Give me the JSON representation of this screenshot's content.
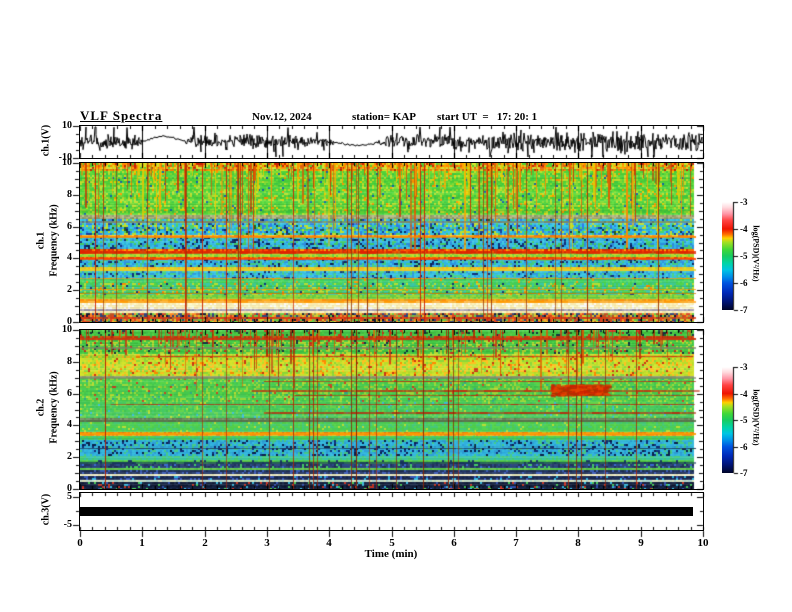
{
  "header": {
    "title": "VLF Spectra",
    "date": "Nov.12, 2024",
    "station": "station= KAP",
    "start_ut": "start UT  =   17: 20: 1"
  },
  "xaxis": {
    "label": "Time (min)",
    "ticks": [
      "0",
      "1",
      "2",
      "3",
      "4",
      "5",
      "6",
      "7",
      "8",
      "9",
      "10"
    ],
    "minutes_span": 10,
    "data_end_min": 9.84
  },
  "panels": {
    "ch1_wave": {
      "ylabel": "ch.1(V)",
      "yticks": [
        "10",
        "-10"
      ],
      "ytick_values": [
        10,
        -10
      ]
    },
    "spec1": {
      "ylabel_channel": "ch.1",
      "ylabel_axis": "Frequency (kHz)",
      "yticks": [
        "10",
        "8",
        "6",
        "4",
        "2",
        "0"
      ],
      "ytick_values": [
        10,
        8,
        6,
        4,
        2,
        0
      ]
    },
    "spec2": {
      "ylabel_channel": "ch.2",
      "ylabel_axis": "Frequency (kHz)",
      "yticks": [
        "10",
        "8",
        "6",
        "4",
        "2",
        "0"
      ],
      "ytick_values": [
        10,
        8,
        6,
        4,
        2,
        0
      ]
    },
    "ch3": {
      "ylabel": "ch.3(V)",
      "yticks": [
        "5",
        "-5"
      ],
      "ytick_values": [
        5,
        -5
      ]
    }
  },
  "colorbar": {
    "label": "log(PSD)(V²/Hz)",
    "ticks": [
      "-3",
      "-4",
      "-5",
      "-6",
      "-7"
    ],
    "gradient": [
      [
        "#ffffff",
        0
      ],
      [
        "#ffdade",
        5
      ],
      [
        "#ff96a6",
        11
      ],
      [
        "#ff4444",
        17
      ],
      [
        "#ee1400",
        25
      ],
      [
        "#ff7000",
        30
      ],
      [
        "#ffd000",
        33.5
      ],
      [
        "#a8e020",
        37
      ],
      [
        "#40d838",
        44
      ],
      [
        "#18cc60",
        50
      ],
      [
        "#00d4a8",
        57
      ],
      [
        "#00c4e4",
        63
      ],
      [
        "#0088e8",
        70
      ],
      [
        "#0054e0",
        75
      ],
      [
        "#0028b8",
        84
      ],
      [
        "#001478",
        92
      ],
      [
        "#000428",
        100
      ]
    ]
  },
  "colors": {
    "background": "#ffffff",
    "frame": "#000000",
    "trace": "#000000",
    "ch3_bar": "#000000"
  },
  "chart_data": [
    {
      "type": "line",
      "name": "ch1-voltage-waveform",
      "ylabel": "ch.1(V)",
      "xlabel": "Time (min)",
      "xlim": [
        0,
        10
      ],
      "ylim": [
        -10,
        10
      ],
      "description": "Dense broadband noise trace about 0 V with frequent spikes toward +/-9 V; quiet smooth arcs near 1.0-1.7 min and 4.1-4.8 min; strongest bursts near 7.0-7.5 min and after 8.8 min",
      "amplitude_envelope": [
        [
          0,
          5.5
        ],
        [
          0.9,
          5
        ],
        [
          1.0,
          1.5
        ],
        [
          1.7,
          1.5
        ],
        [
          1.8,
          5.5
        ],
        [
          2.6,
          6
        ],
        [
          3.4,
          5
        ],
        [
          4.05,
          2
        ],
        [
          4.85,
          2
        ],
        [
          5.0,
          5.5
        ],
        [
          6.3,
          5.5
        ],
        [
          7.0,
          8
        ],
        [
          7.5,
          6
        ],
        [
          8.3,
          6.5
        ],
        [
          8.8,
          7.5
        ],
        [
          9.4,
          6
        ],
        [
          9.84,
          7
        ]
      ],
      "smooth_arcs": [
        {
          "t": [
            1.0,
            1.7
          ],
          "peak_V": 3.5
        },
        {
          "t": [
            4.1,
            4.8
          ],
          "peak_V": -2
        }
      ]
    },
    {
      "type": "heatmap",
      "name": "ch1-spectrogram",
      "ylabel": "ch.1 Frequency (kHz)",
      "xlim": [
        0,
        10
      ],
      "ylim": [
        0,
        10
      ],
      "zlim": [
        -7,
        -3
      ],
      "zlabel": "log(PSD)(V²/Hz)",
      "t_end_min": 9.84,
      "description": "Green/yellow sferic-streaked region 6.7-10 kHz, cyan-blue bands 2.6-6.5 kHz with strong red interference band near 4.4 kHz, green 1.4-2.7 kHz, bright cream band 0.9-1.3 kHz, mixed stripes below 0.7 kHz",
      "bands": [
        {
          "f": [
            10,
            9.55
          ],
          "colors": [
            "#d8e42a",
            "#ffa500",
            "#55cc33",
            "#e06010",
            "#ccdd33",
            "#ff8800"
          ],
          "spk": [
            "#cc2200"
          ],
          "p": 0.1
        },
        {
          "f": [
            9.55,
            6.75
          ],
          "colors": [
            "#4fd43a",
            "#62de3d",
            "#bfe12f",
            "#4fd43a",
            "#86dd35",
            "#3fcc44"
          ],
          "spk": [
            "#ff9900",
            "#1166aa",
            "#e8d000"
          ],
          "p": 0.07
        },
        {
          "f": [
            6.75,
            6.5
          ],
          "colors": [
            "#9aa071",
            "#b0b080",
            "#8a9a68",
            "#b8c090"
          ]
        },
        {
          "f": [
            6.5,
            5.52
          ],
          "colors": [
            "#3dc8e8",
            "#2fb6e0",
            "#4ad46b",
            "#2f7fe8",
            "#bfe12f",
            "#35c0e8"
          ],
          "spk": [
            "#1a3fa0",
            "#0a2a66",
            "#206020"
          ],
          "p": 0.12
        },
        {
          "f": [
            5.52,
            5.36
          ],
          "colors": [
            "#ff9210",
            "#ffb020",
            "#e07010",
            "#ffcc30"
          ]
        },
        {
          "f": [
            5.36,
            4.6
          ],
          "colors": [
            "#38bce8",
            "#2f8fe0",
            "#45cc66",
            "#2fb6e0",
            "#40c8e0"
          ],
          "spk": [
            "#10307a",
            "#0a1f55"
          ],
          "p": 0.14
        },
        {
          "f": [
            4.6,
            4.32
          ],
          "colors": [
            "#e82800",
            "#ff4a00",
            "#d03000",
            "#ff7700"
          ],
          "spk": [
            "#ffaa00"
          ],
          "p": 0.15
        },
        {
          "f": [
            4.32,
            4.12
          ],
          "colors": [
            "#a8d832",
            "#c0e030",
            "#7ad23a"
          ]
        },
        {
          "f": [
            4.12,
            3.96
          ],
          "colors": [
            "#ff5f00",
            "#e83a00",
            "#ff8800"
          ]
        },
        {
          "f": [
            3.96,
            3.4
          ],
          "colors": [
            "#38c4e8",
            "#2f93e0",
            "#45cc80",
            "#2fb6e0"
          ],
          "spk": [
            "#10307a",
            "#0a1f55"
          ],
          "p": 0.14
        },
        {
          "f": [
            3.4,
            3.22
          ],
          "colors": [
            "#e8d820",
            "#ffb020",
            "#d8cc30"
          ]
        },
        {
          "f": [
            3.22,
            2.7
          ],
          "colors": [
            "#40c8e8",
            "#2f9fe0",
            "#4ad48a",
            "#38c0e0"
          ],
          "spk": [
            "#10307a"
          ],
          "p": 0.11
        },
        {
          "f": [
            2.7,
            2.4
          ],
          "colors": [
            "#44d455",
            "#55dd66",
            "#3fcc7a"
          ],
          "spk": [
            "#ff9900"
          ],
          "p": 0.03
        },
        {
          "f": [
            2.4,
            1.7
          ],
          "colors": [
            "#44cc58",
            "#38c8a8",
            "#52d44a",
            "#b8dd33",
            "#3fc890"
          ],
          "spk": [
            "#ff8800",
            "#10307a"
          ],
          "p": 0.06
        },
        {
          "f": [
            1.7,
            1.42
          ],
          "colors": [
            "#86d838",
            "#9ad83a",
            "#66cc44"
          ]
        },
        {
          "f": [
            1.42,
            1.26
          ],
          "colors": [
            "#ffb022",
            "#ff9010",
            "#e8a020"
          ]
        },
        {
          "f": [
            1.26,
            0.88
          ],
          "colors": [
            "#ffffd8",
            "#fff8c0",
            "#ffeeb0",
            "#ffffff",
            "#f8f0b8"
          ]
        },
        {
          "f": [
            0.88,
            0.68
          ],
          "colors": [
            "#b2a8c0",
            "#a8a0b0",
            "#c0b8c8",
            "#9a94a8"
          ]
        },
        {
          "f": [
            0.68,
            0.52
          ],
          "colors": [
            "#fff8c8",
            "#ffeeb8",
            "#f0e8a8"
          ]
        },
        {
          "f": [
            0.52,
            0
          ],
          "colors": [
            "#ff8822",
            "#9a9a48",
            "#dd4422",
            "#30447a",
            "#66cc44",
            "#d8c830",
            "#c05020"
          ],
          "spk": [
            "#101830"
          ],
          "p": 0.1
        }
      ],
      "h_lines": [
        {
          "f": 6.37,
          "c": "#7a8866",
          "w": 2
        },
        {
          "f": 5.44,
          "c": "#ff8800",
          "w": 2
        },
        {
          "f": 4.46,
          "c": "#e02200",
          "w": 3
        },
        {
          "f": 4.04,
          "c": "#ff4400",
          "w": 2
        },
        {
          "f": 3.31,
          "c": "#e8d020",
          "w": 2
        },
        {
          "f": 2.78,
          "c": "#ff9900",
          "w": 1
        },
        {
          "f": 2.06,
          "c": "#ff9900",
          "w": 1
        },
        {
          "f": 1.83,
          "c": "#cc7700",
          "w": 1
        },
        {
          "f": 1.32,
          "c": "#ff9900",
          "w": 2
        },
        {
          "f": 0.3,
          "c": "#dd3311",
          "w": 2
        }
      ],
      "streaks": {
        "count": 170,
        "zone_frac": 0.55,
        "len": [
          12,
          110
        ],
        "colors": [
          "#ff8800",
          "#ffaa00",
          "#e05500",
          "#e8cc00",
          "#cc3300"
        ],
        "full_count": 26,
        "full_colors": [
          "#cc2200",
          "#993300"
        ],
        "tail_color": "#3fcc66"
      }
    },
    {
      "type": "heatmap",
      "name": "ch2-spectrogram",
      "ylabel": "ch.2 Frequency (kHz)",
      "xlim": [
        0,
        10
      ],
      "ylim": [
        0,
        10
      ],
      "zlim": [
        -7,
        -3
      ],
      "zlabel": "log(PSD)(V²/Hz)",
      "t_end_min": 9.84,
      "description": "Mostly green with red sferic streaks above 5.5 kHz, bright yellow band 7.2-8.5 kHz, red interference blotch near 6.2 kHz at 7.6-8.4 min, cyan-blue 2.1-3 kHz, dark navy bands below 1.6 kHz with cream lines near 0.9 and 0.5 kHz",
      "bands": [
        {
          "f": [
            10,
            9.6
          ],
          "colors": [
            "#44cc44",
            "#3fc43f",
            "#55d44a",
            "#48c850"
          ],
          "spk": [
            "#113344",
            "#226622",
            "#cc3322"
          ],
          "p": 0.16
        },
        {
          "f": [
            9.6,
            9.42
          ],
          "colors": [
            "#cc3a11",
            "#dd5511",
            "#44aa44",
            "#b84410"
          ]
        },
        {
          "f": [
            9.42,
            8.55
          ],
          "colors": [
            "#44cc48",
            "#50d44a",
            "#b8dd33",
            "#40c844"
          ],
          "spk": [
            "#cc3322",
            "#113344"
          ],
          "p": 0.09
        },
        {
          "f": [
            8.55,
            7.15
          ],
          "colors": [
            "#b8dd2a",
            "#d4e42a",
            "#8ad83a",
            "#ffc020",
            "#c8e030"
          ],
          "spk": [
            "#ff8800",
            "#cc3311"
          ],
          "p": 0.08
        },
        {
          "f": [
            7.15,
            6.95
          ],
          "colors": [
            "#8a9a68",
            "#9aa878",
            "#a0a878"
          ]
        },
        {
          "f": [
            6.95,
            5.5
          ],
          "colors": [
            "#48cc55",
            "#55d44a",
            "#9ad83a",
            "#44c84c"
          ],
          "spk": [
            "#b8dd33",
            "#2faa88",
            "#cc4422"
          ],
          "p": 0.08
        },
        {
          "f": [
            5.5,
            4.45
          ],
          "colors": [
            "#48cc5a",
            "#44c868",
            "#66d44a",
            "#40c455"
          ],
          "spk": [
            "#38bcd8",
            "#b8dd33"
          ],
          "p": 0.06
        },
        {
          "f": [
            4.45,
            4.25
          ],
          "colors": [
            "#6a8858",
            "#78946a",
            "#5c7850"
          ]
        },
        {
          "f": [
            4.25,
            3.62
          ],
          "colors": [
            "#48cc5a",
            "#55d44f",
            "#44c878",
            "#50cc48"
          ],
          "spk": [
            "#b8dd33"
          ],
          "p": 0.05
        },
        {
          "f": [
            3.62,
            3.38
          ],
          "colors": [
            "#ffa010",
            "#e88010",
            "#d8c020",
            "#ff8800"
          ]
        },
        {
          "f": [
            3.38,
            3.02
          ],
          "colors": [
            "#44cc66",
            "#3fc888",
            "#55d44a"
          ]
        },
        {
          "f": [
            3.02,
            2.12
          ],
          "colors": [
            "#38bce0",
            "#2f9fd8",
            "#45cc88",
            "#2fb0e0",
            "#35b8dd"
          ],
          "spk": [
            "#10307a",
            "#0a1f4a"
          ],
          "p": 0.15
        },
        {
          "f": [
            2.12,
            1.88
          ],
          "colors": [
            "#3fc8a0",
            "#44cc77",
            "#38c4b0"
          ]
        },
        {
          "f": [
            1.88,
            1.58
          ],
          "colors": [
            "#52cc44",
            "#44c455",
            "#5cd04a"
          ],
          "spk": [
            "#1a3a66"
          ],
          "p": 0.09
        },
        {
          "f": [
            1.58,
            1.32
          ],
          "colors": [
            "#22335c",
            "#2a4a88",
            "#334a7a",
            "#283e6e"
          ],
          "spk": [
            "#3a6ad0",
            "#44cc66"
          ],
          "p": 0.18
        },
        {
          "f": [
            1.32,
            1.18
          ],
          "colors": [
            "#5fc84a",
            "#70cc55",
            "#55c444"
          ]
        },
        {
          "f": [
            1.18,
            0.97
          ],
          "colors": [
            "#1c2c50",
            "#24386a",
            "#203058"
          ],
          "spk": [
            "#3a5ab8"
          ],
          "p": 0.2
        },
        {
          "f": [
            0.97,
            0.82
          ],
          "colors": [
            "#fffada",
            "#f0f0c0",
            "#f8f4cc"
          ]
        },
        {
          "f": [
            0.82,
            0.56
          ],
          "colors": [
            "#16244a",
            "#1e305e",
            "#1a2a52"
          ],
          "spk": [
            "#3a5ac0",
            "#2fb6e0"
          ],
          "p": 0.18
        },
        {
          "f": [
            0.56,
            0.44
          ],
          "colors": [
            "#cfe8d0",
            "#b8e0d8",
            "#e8f0c8"
          ]
        },
        {
          "f": [
            0.44,
            0
          ],
          "colors": [
            "#101c38",
            "#182848",
            "#0c1630",
            "#141f40"
          ],
          "spk": [
            "#2f4fb0",
            "#38bce0",
            "#cc3322",
            "#44cc55"
          ],
          "p": 0.2
        }
      ],
      "h_lines": [
        {
          "f": 9.5,
          "c": "#cc3311",
          "w": 2
        },
        {
          "f": 8.92,
          "c": "#7a8866",
          "w": 2
        },
        {
          "f": 8.35,
          "c": "#cc3311",
          "w": 1,
          "x0": 0.1
        },
        {
          "f": 7.02,
          "c": "#7a8866",
          "w": 2
        },
        {
          "f": 6.8,
          "c": "#b03010",
          "w": 1,
          "x0": 0.3
        },
        {
          "f": 6.2,
          "c": "#c03010",
          "w": 2,
          "x0": 0.28
        },
        {
          "f": 5.9,
          "c": "#b03010",
          "w": 1,
          "x0": 0.35
        },
        {
          "f": 5.35,
          "c": "#b03010",
          "w": 1,
          "x0": 0.05
        },
        {
          "f": 4.85,
          "c": "#b03010",
          "w": 2,
          "x0": 0.3
        },
        {
          "f": 4.32,
          "c": "#55704a",
          "w": 2
        },
        {
          "f": 3.52,
          "c": "#ff9900",
          "w": 2
        },
        {
          "f": 2.6,
          "c": "#1a3a5c",
          "w": 1
        },
        {
          "f": 1.72,
          "c": "#14305c",
          "w": 2
        }
      ],
      "streaks": {
        "count": 95,
        "zone_frac": 0.45,
        "len": [
          8,
          65
        ],
        "colors": [
          "#cc3311",
          "#dd5500",
          "#b02200",
          "#e06600"
        ],
        "full_count": 22,
        "full_colors": [
          "#b02200",
          "#8a2200"
        ],
        "tail_color": "#44cc55"
      },
      "blotch": {
        "t": [
          7.55,
          8.45
        ],
        "f": [
          5.95,
          6.6
        ],
        "colors": [
          "#cc2200",
          "#e84400",
          "#aa3300"
        ],
        "count": 420
      }
    },
    {
      "type": "line",
      "name": "ch3-voltage-waveform",
      "ylabel": "ch.3(V)",
      "xlim": [
        0,
        10
      ],
      "ylim": [
        -5,
        5
      ],
      "t_end_min": 9.84,
      "description": "Saturated constant-level signal drawn as a solid black bar around 0 V for the whole record",
      "band_V": [
        -1.6,
        1.6
      ]
    }
  ]
}
